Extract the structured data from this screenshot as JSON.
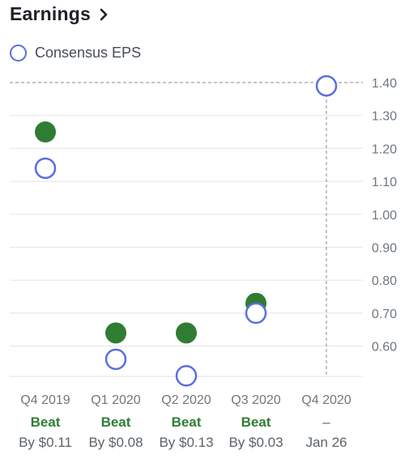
{
  "header": {
    "title": "Earnings"
  },
  "legend": {
    "label": "Consensus EPS"
  },
  "colors": {
    "consensus": "#5b6ee1",
    "actual": "#2f7d32",
    "beat": "#2f7d32",
    "grid": "#e6e8ea",
    "axis": "#6e7780"
  },
  "chart_data": {
    "type": "scatter",
    "categories": [
      "Q4 2019",
      "Q1 2020",
      "Q2 2020",
      "Q3 2020",
      "Q4 2020"
    ],
    "series": [
      {
        "name": "Consensus EPS",
        "values": [
          1.14,
          0.56,
          0.51,
          0.7,
          1.39
        ]
      },
      {
        "values": [
          1.25,
          0.64,
          0.64,
          0.73,
          null
        ]
      }
    ],
    "yticks": [
      "1.40",
      "1.30",
      "1.20",
      "1.10",
      "1.00",
      "0.90",
      "0.80",
      "0.70",
      "0.60"
    ],
    "ylim": [
      0.5,
      1.4
    ],
    "grid": true
  },
  "results": [
    {
      "status": "Beat",
      "detail": "By $0.11"
    },
    {
      "status": "Beat",
      "detail": "By $0.08"
    },
    {
      "status": "Beat",
      "detail": "By $0.13"
    },
    {
      "status": "Beat",
      "detail": "By $0.03"
    },
    {
      "status": "–",
      "detail": "Jan 26"
    }
  ]
}
